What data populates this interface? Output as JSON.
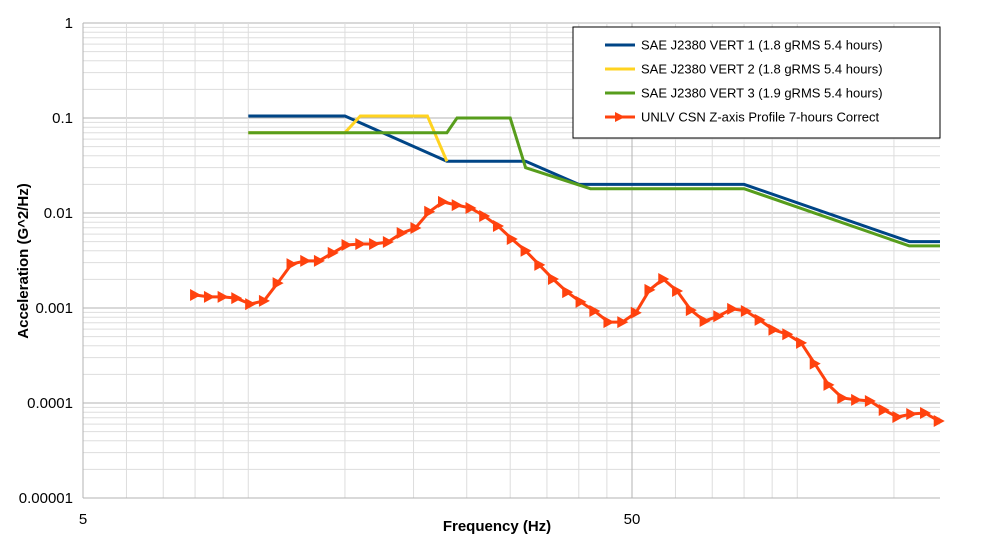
{
  "chart_data": {
    "type": "line",
    "title": "",
    "xlabel": "Frequency (Hz)",
    "ylabel": "Acceleration (G^2/Hz)",
    "xscale": "log",
    "yscale": "log",
    "xlim": [
      5,
      182
    ],
    "ylim": [
      1e-05,
      1
    ],
    "x_tick_labels": [
      "5",
      "50"
    ],
    "x_tick_values": [
      5,
      50
    ],
    "y_tick_labels": [
      "1",
      "0.1",
      "0.01",
      "0.001",
      "0.0001",
      "0.00001"
    ],
    "y_tick_values": [
      1,
      0.1,
      0.01,
      0.001,
      0.0001,
      1e-05
    ],
    "grid": true,
    "legend_position": "top-right",
    "series": [
      {
        "name": "SAE J2380 VERT 1 (1.8 gRMS 5.4 hours)",
        "color": "#004586",
        "x": [
          10,
          15,
          23,
          32,
          40,
          80,
          160,
          182
        ],
        "y": [
          0.105,
          0.105,
          0.035,
          0.035,
          0.02,
          0.02,
          0.005,
          0.005
        ]
      },
      {
        "name": "SAE J2380 VERT 2 (1.8 gRMS 5.4 hours)",
        "color": "#ffd320",
        "x": [
          10,
          15,
          16,
          21.2,
          23
        ],
        "y": [
          0.07,
          0.07,
          0.105,
          0.105,
          0.035
        ]
      },
      {
        "name": "SAE J2380 VERT 3 (1.9 gRMS 5.4 hours)",
        "color": "#579d1c",
        "x": [
          10,
          15,
          23,
          24,
          30,
          32,
          42,
          80,
          160,
          182
        ],
        "y": [
          0.07,
          0.07,
          0.07,
          0.1,
          0.1,
          0.03,
          0.018,
          0.018,
          0.0045,
          0.0045
        ]
      },
      {
        "name": "UNLV CSN Z-axis Profile 7-hours Correct",
        "color": "#ff420e",
        "marker": "triangle-right",
        "x": [
          8,
          8.48,
          8.98,
          9.51,
          10.08,
          10.68,
          11.31,
          11.99,
          12.7,
          13.45,
          14.25,
          15.1,
          16,
          16.95,
          17.96,
          19.03,
          20.16,
          21.36,
          22.63,
          23.97,
          25.4,
          26.9,
          28.5,
          30.2,
          32,
          33.9,
          35.9,
          38.1,
          40.3,
          42.7,
          45.3,
          48,
          50.8,
          53.8,
          57,
          60.4,
          64,
          67.8,
          71.8,
          76.1,
          80.6,
          85.4,
          90.5,
          95.9,
          101.6,
          107.6,
          114,
          120.8,
          128,
          135.6,
          143.7,
          152.2,
          161.3,
          170.9,
          181
        ],
        "y": [
          0.00137,
          0.00131,
          0.00131,
          0.00127,
          0.0011,
          0.00119,
          0.00183,
          0.0029,
          0.00313,
          0.00313,
          0.0038,
          0.0046,
          0.00472,
          0.00472,
          0.00495,
          0.00615,
          0.00695,
          0.0103,
          0.0131,
          0.0121,
          0.0113,
          0.0093,
          0.0073,
          0.00532,
          0.004,
          0.00284,
          0.00202,
          0.00147,
          0.00116,
          0.00093,
          0.00071,
          0.00071,
          0.00089,
          0.00155,
          0.00202,
          0.00151,
          0.00095,
          0.00073,
          0.00082,
          0.00098,
          0.00093,
          0.00075,
          0.00059,
          0.00053,
          0.00043,
          0.00026,
          0.000155,
          0.000113,
          0.000108,
          0.000105,
          8.44e-05,
          7.13e-05,
          7.66e-05,
          7.85e-05,
          6.47e-05
        ]
      }
    ]
  }
}
